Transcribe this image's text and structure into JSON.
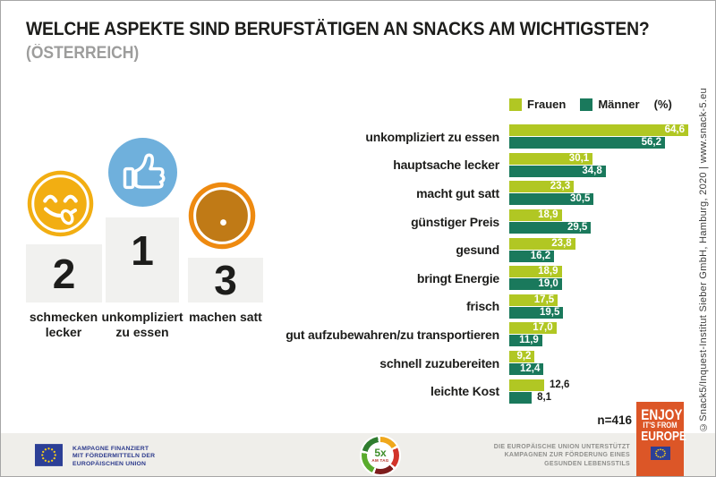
{
  "header": {
    "title": "WELCHE ASPEKTE SIND BERUFSTÄTIGEN AN SNACKS AM WICHTIGSTEN?",
    "subtitle": "(ÖSTERREICH)"
  },
  "copyright": "©Snack5/Inquest-Institut Sieber GmbH, Hamburg, 2020 | www.snack-5.eu",
  "podium": {
    "items": [
      {
        "rank": "2",
        "label": "schmecken lecker",
        "icon": "smiley-yum-icon"
      },
      {
        "rank": "1",
        "label": "unkompliziert zu essen",
        "icon": "thumbs-up-icon"
      },
      {
        "rank": "3",
        "label": "machen satt",
        "icon": "full-belly-icon"
      }
    ]
  },
  "chart_data": {
    "type": "bar",
    "orientation": "horizontal",
    "title": "Welche Aspekte sind Berufstätigen an Snacks am wichtigsten? (Österreich)",
    "unit_label": "(%)",
    "legend_position": "top-right",
    "grid": false,
    "xlim": [
      0,
      64.6
    ],
    "categories": [
      "unkompliziert zu essen",
      "hauptsache lecker",
      "macht gut satt",
      "günstiger Preis",
      "gesund",
      "bringt Energie",
      "frisch",
      "gut aufzubewahren/zu transportieren",
      "schnell zuzubereiten",
      "leichte Kost"
    ],
    "series": [
      {
        "name": "Frauen",
        "color": "#b1c723",
        "values": [
          64.6,
          30.1,
          23.3,
          18.9,
          23.8,
          18.9,
          17.5,
          17.0,
          9.2,
          12.6
        ],
        "labels": [
          "64,6",
          "30,1",
          "23,3",
          "18,9",
          "23,8",
          "18,9",
          "17,5",
          "17,0",
          "9,2",
          "12,6"
        ]
      },
      {
        "name": "Männer",
        "color": "#1a795c",
        "values": [
          56.2,
          34.8,
          30.5,
          29.5,
          16.2,
          19.0,
          19.5,
          11.9,
          12.4,
          8.1
        ],
        "labels": [
          "56,2",
          "34,8",
          "30,5",
          "29,5",
          "16,2",
          "19,0",
          "19,5",
          "11,9",
          "12,4",
          "8,1"
        ]
      }
    ],
    "labels_outside_category_index": 9,
    "sample_size": "n=416"
  },
  "footer": {
    "eu_funding": [
      "KAMPAGNE FINANZIERT",
      "MIT FÖRDERMITTELN DER",
      "EUROPÄISCHEN UNION"
    ],
    "five_a_day": {
      "line1": "5x",
      "line2": "AM TAG"
    },
    "eu_support": [
      "DIE EUROPÄISCHE UNION UNTERSTÜTZT",
      "KAMPAGNEN ZUR FÖRDERUNG EINES",
      "GESUNDEN LEBENSSTILS"
    ],
    "enjoy_badge": [
      "ENJOY",
      "IT'S FROM",
      "EUROPE"
    ]
  },
  "colors": {
    "frauen": "#b1c723",
    "maenner": "#1a795c",
    "podium_block": "#f1f1ef",
    "smiley_yellow": "#f2ae12",
    "thumb_blue": "#6fb0dc",
    "belly_outer": "#ee8a10",
    "belly_inner": "#c07a16",
    "enjoy_badge": "#dc5627",
    "eu_blue": "#2c3f96"
  }
}
